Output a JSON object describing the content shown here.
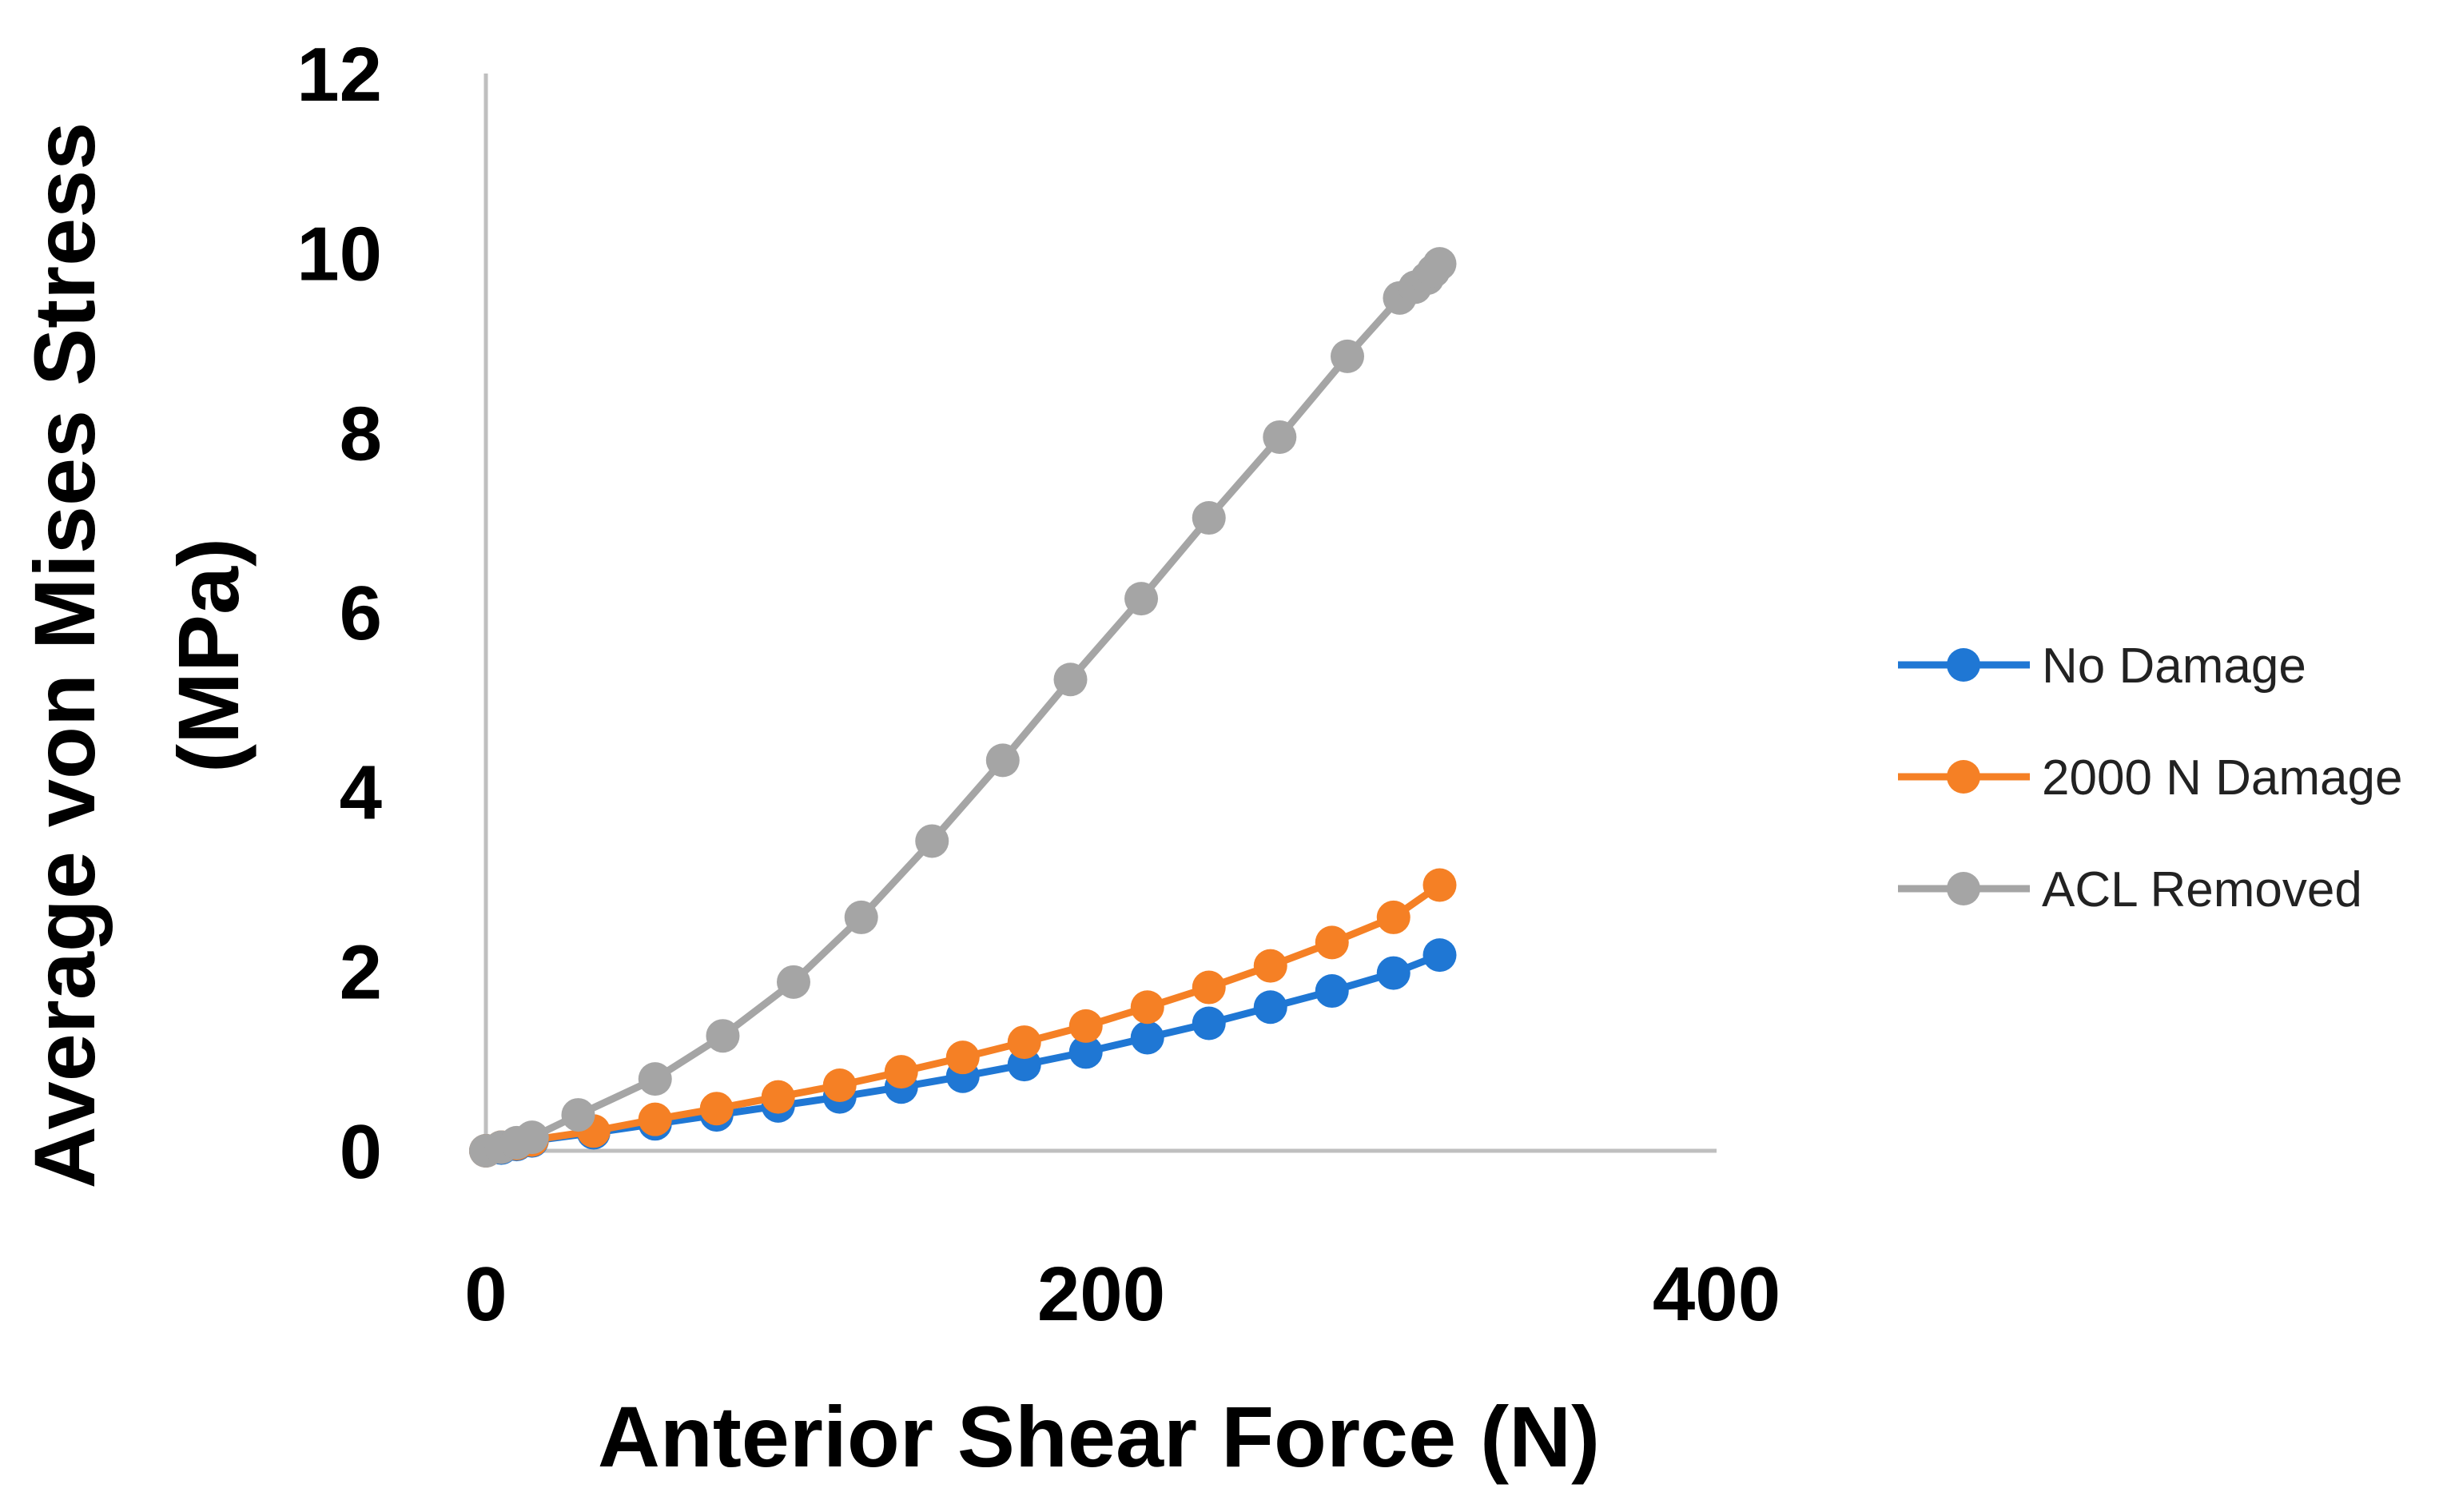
{
  "chart_data": {
    "type": "line",
    "title": "",
    "xlabel": "Anterior Shear Force (N)",
    "ylabel_line1": "Average von Mises Stress",
    "ylabel_line2": "(MPa)",
    "xlim": [
      0,
      400
    ],
    "ylim": [
      0,
      12
    ],
    "x_ticks": [
      0,
      200,
      400
    ],
    "y_ticks": [
      0,
      2,
      4,
      6,
      8,
      10,
      12
    ],
    "grid": false,
    "legend_position": "right",
    "series": [
      {
        "name": "No Damage",
        "color": "#1F77D4",
        "x": [
          0,
          5,
          10,
          15,
          35,
          55,
          75,
          95,
          115,
          135,
          155,
          175,
          195,
          215,
          235,
          255,
          275,
          295,
          310
        ],
        "y": [
          0,
          0.03,
          0.07,
          0.11,
          0.2,
          0.3,
          0.4,
          0.5,
          0.6,
          0.71,
          0.83,
          0.96,
          1.1,
          1.26,
          1.42,
          1.6,
          1.78,
          1.98,
          2.18
        ]
      },
      {
        "name": "2000 N Damage",
        "color": "#F58025",
        "x": [
          0,
          5,
          10,
          15,
          35,
          55,
          75,
          95,
          115,
          135,
          155,
          175,
          195,
          215,
          235,
          255,
          275,
          295,
          310
        ],
        "y": [
          0,
          0.04,
          0.08,
          0.12,
          0.22,
          0.35,
          0.47,
          0.6,
          0.73,
          0.88,
          1.04,
          1.21,
          1.39,
          1.6,
          1.82,
          2.06,
          2.32,
          2.6,
          2.96
        ]
      },
      {
        "name": "ACL Removed",
        "color": "#A5A5A5",
        "x": [
          0,
          5,
          10,
          15,
          30,
          55,
          77,
          100,
          122,
          145,
          168,
          190,
          213,
          235,
          258,
          280,
          297,
          302,
          306,
          308,
          310
        ],
        "y": [
          0,
          0.04,
          0.09,
          0.15,
          0.4,
          0.8,
          1.28,
          1.88,
          2.6,
          3.45,
          4.35,
          5.25,
          6.15,
          7.05,
          7.95,
          8.85,
          9.5,
          9.62,
          9.72,
          9.8,
          9.88
        ]
      }
    ]
  }
}
